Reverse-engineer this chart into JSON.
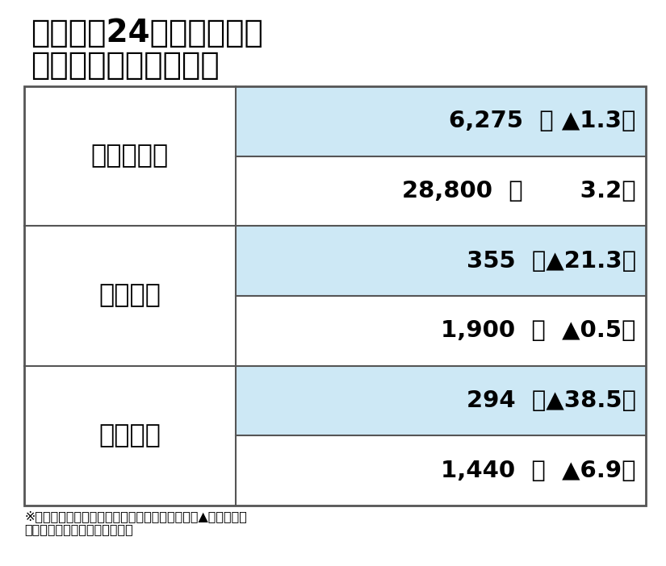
{
  "title_line1": "三菱自の24年４〜６月期",
  "title_line2": "連結決算と通期見通し",
  "title_fontsize": 28,
  "title_color": "#000000",
  "bg_color": "#ffffff",
  "table_border_color": "#555555",
  "highlight_bg": "#cde8f5",
  "rows": [
    {
      "label": "売　上　高",
      "actual_value": "6,275",
      "actual_change": "（ ▲1.3）",
      "forecast_value": "28,800",
      "forecast_change": "（       3.2）"
    },
    {
      "label": "営業利益",
      "actual_value": "355",
      "actual_change": "（▲21.3）",
      "forecast_value": "1,900",
      "forecast_change": "（  ▲0.5）"
    },
    {
      "label": "当期利益",
      "actual_value": "294",
      "actual_change": "（▲38.5）",
      "forecast_value": "1,440",
      "forecast_change": "（  ▲6.9）"
    }
  ],
  "footnote_line1": "※単位：億円、カッコ内は前年同期比増減率％、▲はマイナス",
  "footnote_line2": "　上段：実績、下段：通期予想",
  "footnote_fontsize": 11.5,
  "data_fontsize": 21,
  "label_fontsize": 23
}
